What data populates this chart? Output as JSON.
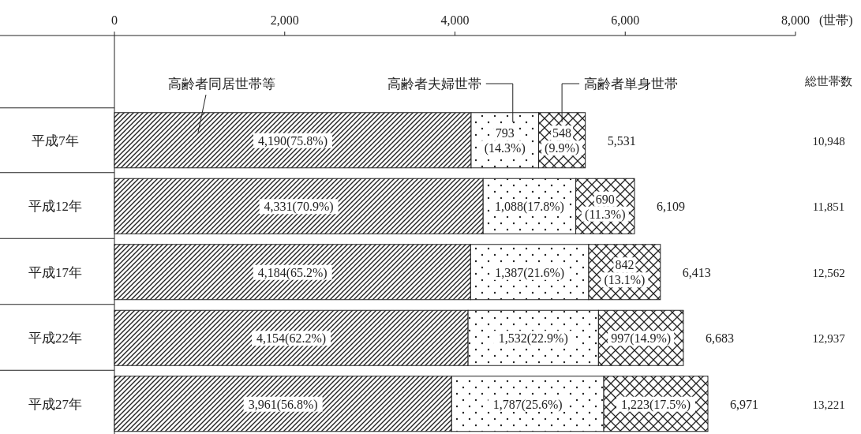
{
  "chart_data": {
    "type": "bar",
    "orientation": "horizontal",
    "stacked": true,
    "xlabel": "(世帯)",
    "categories": [
      "平成7年",
      "平成12年",
      "平成17年",
      "平成22年",
      "平成27年"
    ],
    "xlim": [
      0,
      8000
    ],
    "xticks": [
      0,
      {
        "value": 2000,
        "label": "2,000"
      },
      {
        "value": 4000,
        "label": "4,000"
      },
      {
        "value": 6000,
        "label": "6,000"
      },
      {
        "value": 8000,
        "label": "8,000"
      }
    ],
    "series": [
      {
        "name": "高齢者同居世帯等",
        "color": "#222222",
        "values": [
          4190,
          4331,
          4184,
          4154,
          3961
        ],
        "value_labels": [
          "4,190(75.8%)",
          "4,331(70.9%)",
          "4,184(65.2%)",
          "4,154(62.2%)",
          "3,961(56.8%)"
        ]
      },
      {
        "name": "高齢者夫婦世帯",
        "color": "#222222",
        "values": [
          793,
          1088,
          1387,
          1532,
          1787
        ],
        "value_labels": [
          "793(14.3%)",
          "1,088(17.8%)",
          "1,387(21.6%)",
          "1,532(22.9%)",
          "1,787(25.6%)"
        ]
      },
      {
        "name": "高齢者単身世帯",
        "color": "#222222",
        "values": [
          548,
          690,
          842,
          997,
          1223
        ],
        "value_labels": [
          "548(9.9%)",
          "690(11.3%)",
          "842(13.1%)",
          "997(14.9%)",
          "1,223(17.5%)"
        ]
      }
    ],
    "totals": [
      "5,531",
      "6,109",
      "6,413",
      "6,683",
      "6,971"
    ],
    "annotations": [
      "総世帯数",
      "10,948",
      "11,851",
      "12,562",
      "12,937",
      "13,221"
    ]
  }
}
